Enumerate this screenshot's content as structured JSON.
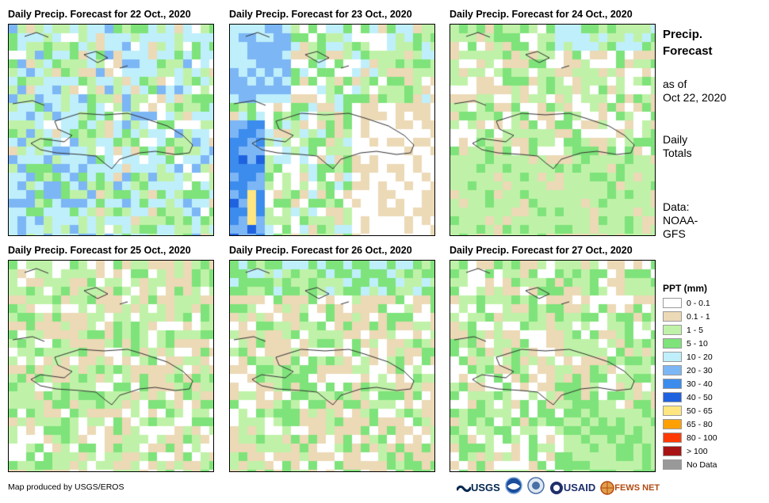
{
  "panels": [
    {
      "title": "Daily Precip. Forecast for 22 Oct., 2020",
      "seed": 11,
      "profile": "wet"
    },
    {
      "title": "Daily Precip. Forecast for 23 Oct., 2020",
      "seed": 23,
      "profile": "west_wet"
    },
    {
      "title": "Daily Precip. Forecast for 24 Oct., 2020",
      "seed": 37,
      "profile": "light"
    },
    {
      "title": "Daily Precip. Forecast for 25 Oct., 2020",
      "seed": 41,
      "profile": "mixed"
    },
    {
      "title": "Daily Precip. Forecast for 26 Oct., 2020",
      "seed": 53,
      "profile": "mixed_north"
    },
    {
      "title": "Daily Precip. Forecast for 27 Oct., 2020",
      "seed": 67,
      "profile": "mixed_green"
    }
  ],
  "sidebar": {
    "title_line1": "Precip.",
    "title_line2": "Forecast",
    "asof_line1": "as of",
    "asof_line2": "Oct 22, 2020",
    "totals_line1": "Daily",
    "totals_line2": "Totals",
    "data_line1": "Data:",
    "data_line2": "NOAA-",
    "data_line3": "GFS"
  },
  "legend": {
    "title": "PPT (mm)",
    "items": [
      {
        "label": "0 - 0.1",
        "color": "#ffffff"
      },
      {
        "label": "0.1 - 1",
        "color": "#ecd9b6"
      },
      {
        "label": "1 - 5",
        "color": "#bff2a8"
      },
      {
        "label": "5 - 10",
        "color": "#7ee37a"
      },
      {
        "label": "10 - 20",
        "color": "#bfeffb"
      },
      {
        "label": "20 - 30",
        "color": "#7cb6f5"
      },
      {
        "label": "30 - 40",
        "color": "#3c8ced"
      },
      {
        "label": "40 - 50",
        "color": "#1f62e0"
      },
      {
        "label": "50 - 65",
        "color": "#ffe680"
      },
      {
        "label": "65 - 80",
        "color": "#ffa000"
      },
      {
        "label": "80 - 100",
        "color": "#ff3a00"
      },
      {
        "label": "> 100",
        "color": "#a81414"
      },
      {
        "label": "No Data",
        "color": "#999999"
      }
    ]
  },
  "footer": {
    "credit": "Map produced by USGS/EROS",
    "logo_usgs": "USGS",
    "logo_usaid": "USAID",
    "logo_fewsnet": "FEWS NET"
  }
}
